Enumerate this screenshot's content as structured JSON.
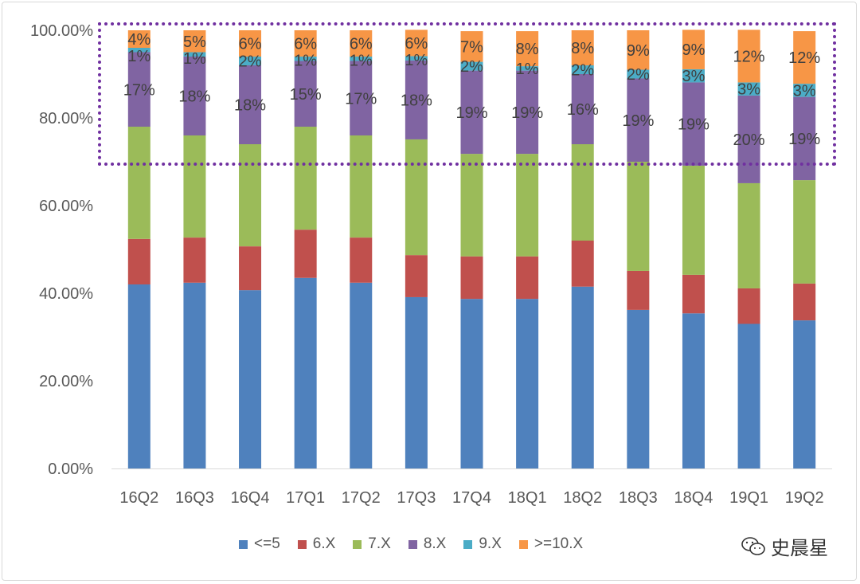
{
  "chart_data": {
    "type": "bar",
    "stacked": true,
    "categories": [
      "16Q2",
      "16Q3",
      "16Q4",
      "17Q1",
      "17Q2",
      "17Q3",
      "17Q4",
      "18Q1",
      "18Q2",
      "18Q3",
      "18Q4",
      "19Q1",
      "19Q2"
    ],
    "series": [
      {
        "name": "<=5",
        "color": "#4f81bd",
        "values": [
          42.0,
          42.4,
          40.7,
          43.5,
          42.4,
          39.1,
          38.7,
          38.7,
          41.5,
          36.2,
          35.4,
          33.0,
          33.8
        ],
        "labels": false
      },
      {
        "name": "6.X",
        "color": "#c0504d",
        "values": [
          10.4,
          10.3,
          10.0,
          11.0,
          10.3,
          9.6,
          9.7,
          9.7,
          10.5,
          8.9,
          8.8,
          8.1,
          8.4
        ],
        "labels": false
      },
      {
        "name": "7.X",
        "color": "#9bbb59",
        "values": [
          25.6,
          23.3,
          23.3,
          23.5,
          23.3,
          26.4,
          23.4,
          23.4,
          22.0,
          24.9,
          24.9,
          24.0,
          23.6
        ],
        "labels": false
      },
      {
        "name": "8.X",
        "color": "#8064a2",
        "values": [
          17,
          18,
          18,
          15,
          17,
          18,
          19,
          19,
          16,
          19,
          19,
          20,
          19
        ],
        "labels": true
      },
      {
        "name": "9.X",
        "color": "#4bacc6",
        "values": [
          1,
          1,
          2,
          1,
          1,
          1,
          2,
          1,
          2,
          2,
          3,
          3,
          3
        ],
        "labels": true
      },
      {
        "name": ">=10.X",
        "color": "#f79646",
        "values": [
          4,
          5,
          6,
          6,
          6,
          6,
          7,
          8,
          8,
          9,
          9,
          12,
          12
        ],
        "labels": true
      }
    ],
    "yticks": [
      "0.00%",
      "20.00%",
      "40.00%",
      "60.00%",
      "80.00%",
      "100.00%"
    ],
    "ylim": [
      0,
      100
    ],
    "grid": false,
    "legend": "bottom",
    "highlight_box_color": "#7030a0"
  },
  "watermark": "史晨星"
}
